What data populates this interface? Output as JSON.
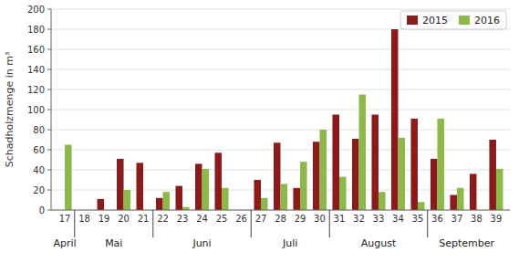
{
  "chart_data": {
    "type": "bar",
    "y_label": "Schadholzmenge in m³",
    "categories": [
      "17",
      "18",
      "19",
      "20",
      "21",
      "22",
      "23",
      "24",
      "25",
      "26",
      "27",
      "28",
      "29",
      "30",
      "31",
      "32",
      "33",
      "34",
      "35",
      "36",
      "37",
      "38",
      "39"
    ],
    "series": [
      {
        "name": "2015",
        "color": "#8B1A1A",
        "values": [
          0,
          0,
          11,
          51,
          47,
          12,
          24,
          46,
          57,
          0,
          30,
          67,
          22,
          68,
          95,
          71,
          95,
          180,
          91,
          51,
          15,
          36,
          70
        ]
      },
      {
        "name": "2016",
        "color": "#8DB84A",
        "values": [
          65,
          0,
          0,
          20,
          0,
          18,
          3,
          41,
          22,
          0,
          12,
          26,
          48,
          80,
          33,
          115,
          18,
          72,
          8,
          91,
          22,
          0,
          41
        ]
      }
    ],
    "annotations": [
      {
        "text": "April",
        "categories": [
          "17"
        ]
      },
      {
        "text": "Mai",
        "categories": [
          "18",
          "19",
          "20",
          "21"
        ]
      },
      {
        "text": "Juni",
        "categories": [
          "22",
          "23",
          "24",
          "25",
          "26"
        ]
      },
      {
        "text": "Juli",
        "categories": [
          "27",
          "28",
          "29",
          "30"
        ]
      },
      {
        "text": "August",
        "categories": [
          "31",
          "32",
          "33",
          "34",
          "35"
        ]
      },
      {
        "text": "September",
        "categories": [
          "36",
          "37",
          "38",
          "39"
        ]
      }
    ],
    "ylim": [
      0,
      200
    ],
    "yticks": [
      0,
      20,
      40,
      60,
      80,
      100,
      120,
      140,
      160,
      180,
      200
    ],
    "grid": true,
    "legend": "upper right"
  }
}
